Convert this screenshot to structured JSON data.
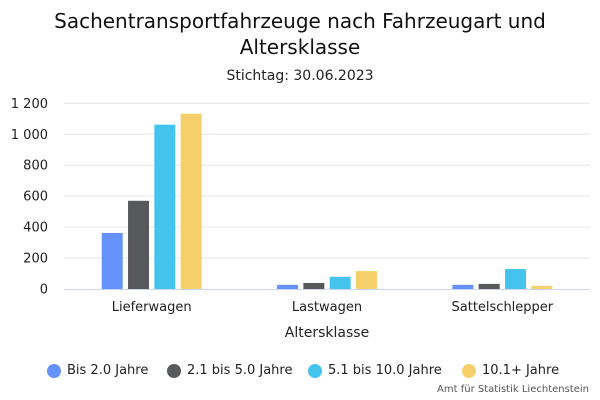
{
  "chart_data": {
    "type": "bar",
    "title": "Sachentransportfahrzeuge nach Fahrzeugart und Altersklasse",
    "subtitle": "Stichtag: 30.06.2023",
    "xlabel": "Altersklasse",
    "ylabel": "",
    "categories": [
      "Lieferwagen",
      "Lastwagen",
      "Sattelschlepper"
    ],
    "series": [
      {
        "name": "Bis 2.0 Jahre",
        "color": "#6592fa",
        "values": [
          362,
          27,
          27
        ]
      },
      {
        "name": "2.1 bis 5.0 Jahre",
        "color": "#58595b",
        "values": [
          570,
          39,
          33
        ]
      },
      {
        "name": "5.1 bis 10.0 Jahre",
        "color": "#45c3ef",
        "values": [
          1062,
          79,
          129
        ]
      },
      {
        "name": "10.1+ Jahre",
        "color": "#f5d06a",
        "values": [
          1133,
          116,
          20
        ]
      }
    ],
    "ylim": [
      0,
      1200
    ],
    "yticks": [
      0,
      200,
      400,
      600,
      800,
      1000,
      1200
    ],
    "ytick_labels": [
      "0",
      "200",
      "400",
      "600",
      "800",
      "1 000",
      "1 200"
    ],
    "grid": true,
    "legend_position": "bottom"
  },
  "credits": "Amt für Statistik Liechtenstein"
}
